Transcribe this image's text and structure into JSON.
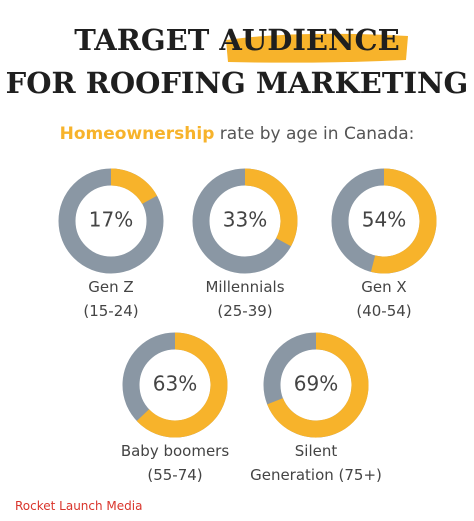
{
  "chart_data": {
    "type": "donut",
    "title": [
      "TARGET",
      "AUDIENCE"
    ],
    "title_line2": "FOR ROOFING MARKETING",
    "subtitle": [
      "Homeownership",
      "rate by age in Canada:"
    ],
    "categories": [
      [
        "Gen Z",
        "(15-24)"
      ],
      [
        "Millennials",
        "(25-39)"
      ],
      [
        "Gen X",
        "(40-54)"
      ],
      [
        "Baby boomers",
        "(55-74)"
      ],
      [
        "Silent",
        "Generation (75+)"
      ]
    ],
    "values": [
      17,
      33,
      54,
      63,
      69
    ],
    "value_labels": [
      "17%",
      "33%",
      "54%",
      "63%",
      "69%"
    ],
    "color": "#f7b32b",
    "rest_color": "#8a97a4",
    "source": "Rocket Launch Media"
  }
}
